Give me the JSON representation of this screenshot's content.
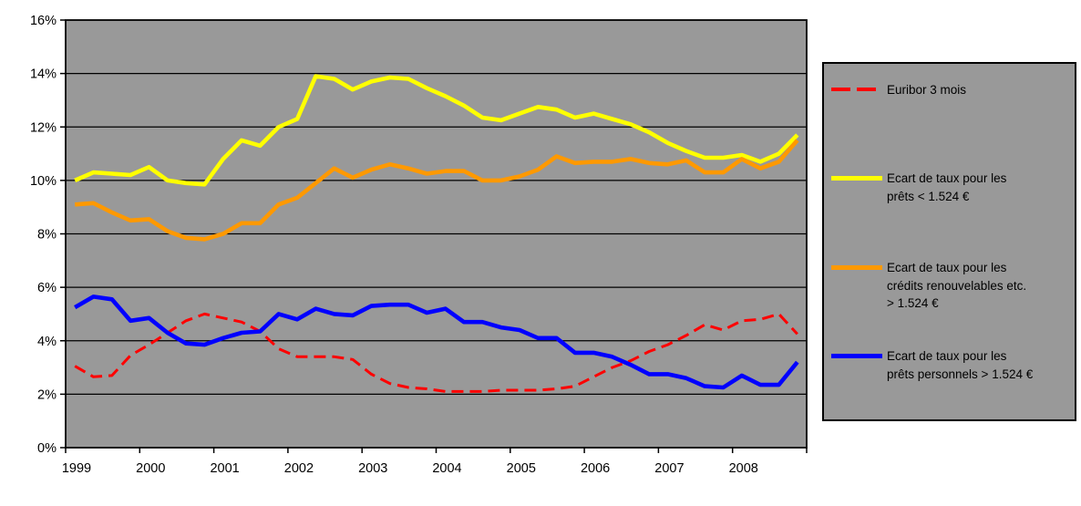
{
  "chart_data": {
    "type": "line",
    "title": "",
    "plot_bg": "#999999",
    "grid_color": "#000000",
    "outer_bg": "#ffffff",
    "legend_position": "right",
    "grid": true,
    "y_axis": {
      "min": 0,
      "max": 16,
      "step": 2,
      "ticks": [
        "16%",
        "14%",
        "12%",
        "10%",
        "8%",
        "6%",
        "4%",
        "2%",
        "0%"
      ]
    },
    "x_axis": {
      "ticks": [
        "1999",
        "2000",
        "2001",
        "2002",
        "2003",
        "2004",
        "2005",
        "2006",
        "2007",
        "2008"
      ],
      "points_per_year": 4
    },
    "series": [
      {
        "name": "Euribor 3 mois",
        "color": "#FF0000",
        "dashed": true,
        "values": [
          3.05,
          2.65,
          2.7,
          3.45,
          3.85,
          4.3,
          4.75,
          5.0,
          4.85,
          4.7,
          4.35,
          3.7,
          3.4,
          3.4,
          3.4,
          3.3,
          2.75,
          2.4,
          2.25,
          2.2,
          2.1,
          2.1,
          2.1,
          2.15,
          2.15,
          2.15,
          2.2,
          2.3,
          2.65,
          3.0,
          3.25,
          3.6,
          3.85,
          4.2,
          4.6,
          4.4,
          4.75,
          4.8,
          5.0,
          4.25
        ]
      },
      {
        "name": "Ecart de taux pour les\nprêts < 1.524 €",
        "color": "#FFFF00",
        "dashed": false,
        "values": [
          10.0,
          10.3,
          10.25,
          10.2,
          10.5,
          10.0,
          9.9,
          9.85,
          10.8,
          11.5,
          11.3,
          12.0,
          12.3,
          13.9,
          13.8,
          13.4,
          13.7,
          13.85,
          13.8,
          13.45,
          13.15,
          12.8,
          12.35,
          12.25,
          12.5,
          12.75,
          12.65,
          12.35,
          12.5,
          12.3,
          12.1,
          11.8,
          11.4,
          11.1,
          10.85,
          10.85,
          10.95,
          10.7,
          11.0,
          11.7
        ]
      },
      {
        "name": "Ecart de taux pour les\ncrédits renouvelables etc.\n> 1.524 €",
        "color": "#FF9900",
        "dashed": false,
        "values": [
          9.1,
          9.15,
          8.8,
          8.5,
          8.55,
          8.1,
          7.85,
          7.8,
          8.0,
          8.4,
          8.4,
          9.1,
          9.35,
          9.9,
          10.45,
          10.1,
          10.4,
          10.6,
          10.45,
          10.25,
          10.35,
          10.35,
          10.0,
          10.0,
          10.15,
          10.4,
          10.9,
          10.65,
          10.7,
          10.7,
          10.8,
          10.65,
          10.6,
          10.75,
          10.3,
          10.3,
          10.8,
          10.45,
          10.7,
          11.5
        ]
      },
      {
        "name": "Ecart de taux pour les\nprêts personnels > 1.524 €",
        "color": "#0000FF",
        "dashed": false,
        "values": [
          5.25,
          5.65,
          5.55,
          4.75,
          4.85,
          4.3,
          3.9,
          3.85,
          4.1,
          4.3,
          4.35,
          5.0,
          4.8,
          5.2,
          5.0,
          4.95,
          5.3,
          5.35,
          5.35,
          5.05,
          5.2,
          4.7,
          4.7,
          4.5,
          4.4,
          4.1,
          4.1,
          3.55,
          3.55,
          3.4,
          3.1,
          2.75,
          2.75,
          2.6,
          2.3,
          2.25,
          2.7,
          2.35,
          2.35,
          3.2
        ]
      }
    ]
  }
}
